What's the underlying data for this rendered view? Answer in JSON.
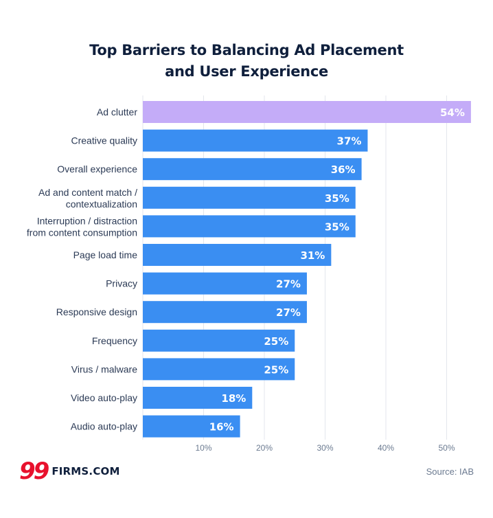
{
  "chart_data": {
    "type": "bar",
    "orientation": "horizontal",
    "title_lines": [
      "Top Barriers to Balancing Ad Placement",
      "and User Experience"
    ],
    "categories": [
      [
        "Ad clutter"
      ],
      [
        "Creative quality"
      ],
      [
        "Overall experience"
      ],
      [
        "Ad and content match /",
        "contextualization"
      ],
      [
        "Interruption / distraction",
        "from content consumption"
      ],
      [
        "Page load time"
      ],
      [
        "Privacy"
      ],
      [
        "Responsive design"
      ],
      [
        "Frequency"
      ],
      [
        "Virus / malware"
      ],
      [
        "Video auto-play"
      ],
      [
        "Audio auto-play"
      ]
    ],
    "values": [
      54,
      37,
      36,
      35,
      35,
      31,
      27,
      27,
      25,
      25,
      18,
      16
    ],
    "value_labels": [
      "54%",
      "37%",
      "36%",
      "35%",
      "35%",
      "31%",
      "27%",
      "27%",
      "25%",
      "25%",
      "18%",
      "16%"
    ],
    "xlim": [
      0,
      54
    ],
    "xticks": [
      10,
      20,
      30,
      40,
      50
    ],
    "xtick_labels": [
      "10%",
      "20%",
      "30%",
      "40%",
      "50%"
    ],
    "grid": true,
    "colors": {
      "highlight": "#c4acf8",
      "bar": "#3a8ef2",
      "grid": "#e3e6ec",
      "label": "#2b3a55",
      "value": "#ffffff"
    },
    "highlight_index": 0
  },
  "logo": {
    "mark": "99",
    "text": "FIRMS.COM"
  },
  "source": "Source: IAB"
}
